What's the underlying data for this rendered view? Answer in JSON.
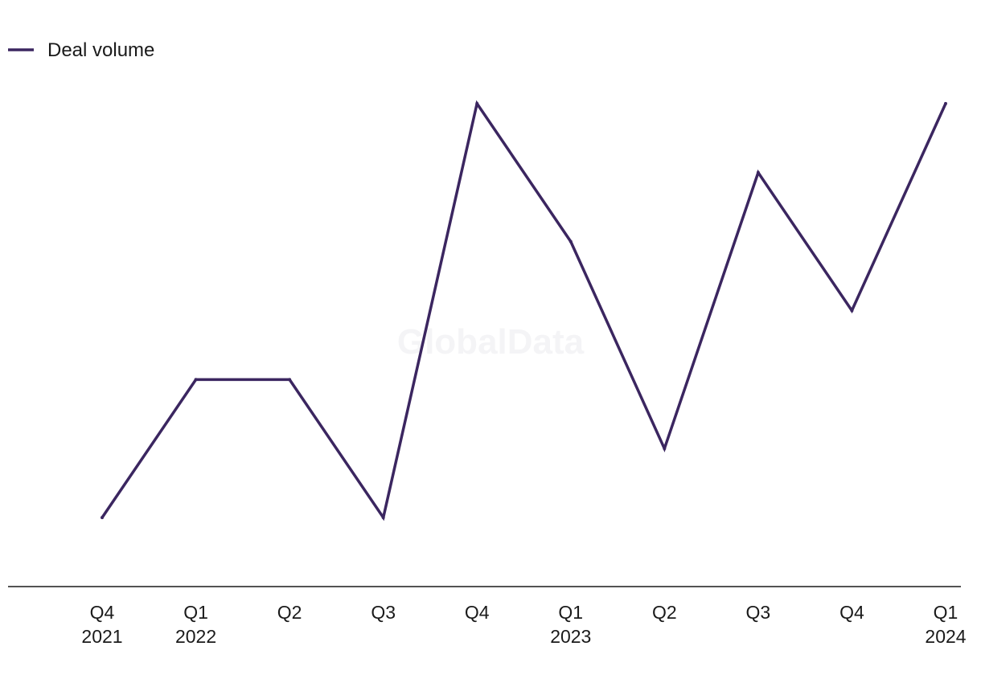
{
  "watermark": "GlobalData",
  "chart_data": {
    "type": "line",
    "categories": [
      "Q4 2021",
      "Q1 2022",
      "Q2",
      "Q3",
      "Q4",
      "Q1 2023",
      "Q2",
      "Q3",
      "Q4",
      "Q1 2024"
    ],
    "tick_labels": [
      {
        "line1": "Q4",
        "line2": "2021"
      },
      {
        "line1": "Q1",
        "line2": "2022"
      },
      {
        "line1": "Q2",
        "line2": ""
      },
      {
        "line1": "Q3",
        "line2": ""
      },
      {
        "line1": "Q4",
        "line2": ""
      },
      {
        "line1": "Q1",
        "line2": "2023"
      },
      {
        "line1": "Q2",
        "line2": ""
      },
      {
        "line1": "Q3",
        "line2": ""
      },
      {
        "line1": "Q4",
        "line2": ""
      },
      {
        "line1": "Q1",
        "line2": "2024"
      }
    ],
    "series": [
      {
        "name": "Deal volume",
        "color": "#3b2660",
        "values": [
          1,
          3,
          3,
          1,
          7,
          5,
          2,
          6,
          4,
          7
        ]
      }
    ],
    "ylim": [
      0,
      8
    ],
    "grid": false,
    "legend_position": "top-left",
    "xlabel": "",
    "ylabel": ""
  }
}
